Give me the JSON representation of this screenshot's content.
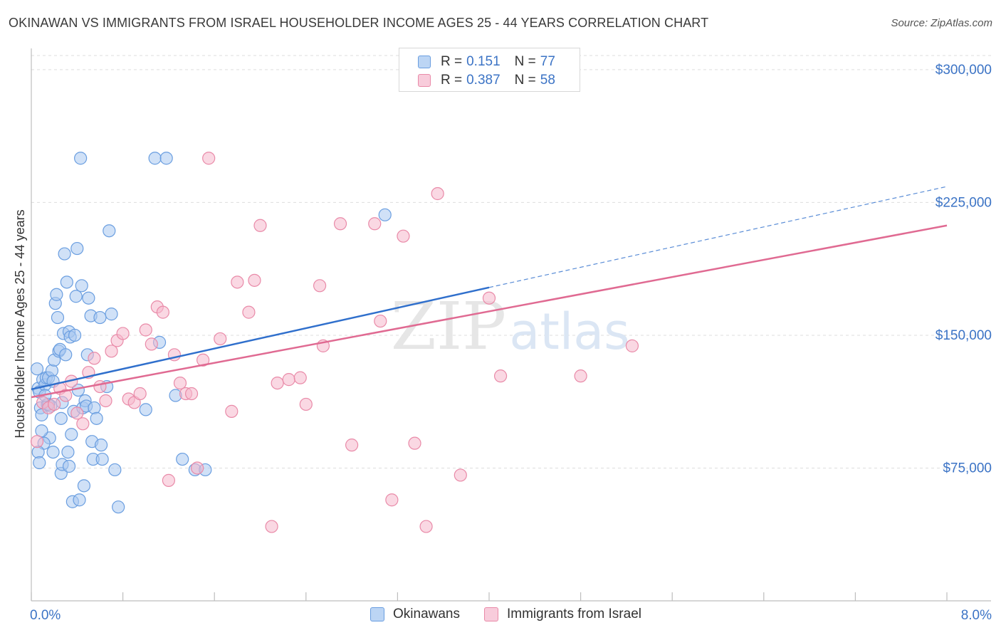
{
  "header": {
    "title": "OKINAWAN VS IMMIGRANTS FROM ISRAEL HOUSEHOLDER INCOME AGES 25 - 44 YEARS CORRELATION CHART",
    "source": "Source: ZipAtlas.com"
  },
  "watermark": {
    "zip": "ZIP",
    "atlas": "atlas"
  },
  "legend": {
    "rows": [
      {
        "r_label": "R =",
        "r_value": "0.151",
        "n_label": "N =",
        "n_value": "77"
      },
      {
        "r_label": "R =",
        "r_value": "0.387",
        "n_label": "N =",
        "n_value": "58"
      }
    ]
  },
  "bottom_legend": {
    "series1": "Okinawans",
    "series2": "Immigrants from Israel"
  },
  "colors": {
    "series1_fill": "#a9c8f0",
    "series1_stroke": "#6a9ee0",
    "series1_line": "#2f6fcc",
    "series2_fill": "#f5b8cc",
    "series2_stroke": "#e98aa8",
    "series2_line": "#e06a92",
    "axis_label": "#3b73c5",
    "grid": "#dddddd"
  },
  "chart_data": {
    "type": "scatter",
    "title": "OKINAWAN VS IMMIGRANTS FROM ISRAEL HOUSEHOLDER INCOME AGES 25 - 44 YEARS CORRELATION CHART",
    "ylabel": "Householder Income Ages 25 - 44 years",
    "xlabel": "",
    "x_ticks": [
      "0.0%",
      "8.0%"
    ],
    "y_ticks": [
      "$75,000",
      "$150,000",
      "$225,000",
      "$300,000"
    ],
    "y_tick_values": [
      75000,
      150000,
      225000,
      300000
    ],
    "xlim": [
      0,
      8.0
    ],
    "ylim": [
      0,
      308000
    ],
    "grid": true,
    "series": [
      {
        "name": "Okinawans",
        "r": 0.151,
        "n": 77,
        "trend": {
          "x0": 0.0,
          "y0": 119500,
          "x1": 4.0,
          "y1": 177000,
          "x_end_dashed": 8.0,
          "y_end_dashed": 234000
        },
        "points": [
          [
            0.05,
            131000
          ],
          [
            0.06,
            120000
          ],
          [
            0.07,
            118000
          ],
          [
            0.08,
            109000
          ],
          [
            0.1,
            125000
          ],
          [
            0.12,
            122000
          ],
          [
            0.13,
            126000
          ],
          [
            0.14,
            111000
          ],
          [
            0.15,
            126000
          ],
          [
            0.17,
            110000
          ],
          [
            0.18,
            130000
          ],
          [
            0.19,
            124000
          ],
          [
            0.2,
            136000
          ],
          [
            0.21,
            168000
          ],
          [
            0.22,
            173000
          ],
          [
            0.23,
            160000
          ],
          [
            0.24,
            141000
          ],
          [
            0.25,
            142000
          ],
          [
            0.26,
            103000
          ],
          [
            0.27,
            112000
          ],
          [
            0.28,
            151000
          ],
          [
            0.29,
            196000
          ],
          [
            0.3,
            139000
          ],
          [
            0.31,
            180000
          ],
          [
            0.32,
            84000
          ],
          [
            0.33,
            152000
          ],
          [
            0.34,
            149000
          ],
          [
            0.35,
            94000
          ],
          [
            0.36,
            56000
          ],
          [
            0.37,
            107000
          ],
          [
            0.38,
            150000
          ],
          [
            0.39,
            172000
          ],
          [
            0.4,
            199000
          ],
          [
            0.41,
            119000
          ],
          [
            0.42,
            57000
          ],
          [
            0.43,
            250000
          ],
          [
            0.44,
            178000
          ],
          [
            0.45,
            109000
          ],
          [
            0.46,
            65000
          ],
          [
            0.47,
            113000
          ],
          [
            0.48,
            110000
          ],
          [
            0.49,
            139000
          ],
          [
            0.5,
            171000
          ],
          [
            0.52,
            161000
          ],
          [
            0.53,
            90000
          ],
          [
            0.54,
            80000
          ],
          [
            0.55,
            109000
          ],
          [
            0.57,
            103000
          ],
          [
            0.6,
            160000
          ],
          [
            0.61,
            88000
          ],
          [
            0.62,
            80000
          ],
          [
            0.66,
            121000
          ],
          [
            0.68,
            209000
          ],
          [
            0.7,
            162000
          ],
          [
            0.73,
            74000
          ],
          [
            0.76,
            53000
          ],
          [
            1.0,
            108000
          ],
          [
            1.08,
            250000
          ],
          [
            1.12,
            146000
          ],
          [
            1.18,
            250000
          ],
          [
            1.26,
            116000
          ],
          [
            1.32,
            80000
          ],
          [
            1.43,
            74000
          ],
          [
            1.52,
            74000
          ],
          [
            3.09,
            218000
          ],
          [
            0.09,
            105000
          ],
          [
            0.16,
            92000
          ],
          [
            0.26,
            72000
          ],
          [
            0.11,
            89000
          ],
          [
            0.19,
            84000
          ],
          [
            0.27,
            77000
          ],
          [
            0.33,
            76000
          ],
          [
            0.06,
            84000
          ],
          [
            0.09,
            96000
          ],
          [
            0.07,
            78000
          ],
          [
            0.15,
            111000
          ],
          [
            0.12,
            116000
          ]
        ]
      },
      {
        "name": "Immigrants from Israel",
        "r": 0.387,
        "n": 58,
        "trend": {
          "x0": 0.0,
          "y0": 115000,
          "x1": 8.0,
          "y1": 212000
        },
        "points": [
          [
            0.05,
            90000
          ],
          [
            0.1,
            112000
          ],
          [
            0.15,
            109000
          ],
          [
            0.2,
            111000
          ],
          [
            0.25,
            120000
          ],
          [
            0.3,
            116000
          ],
          [
            0.35,
            124000
          ],
          [
            0.4,
            106000
          ],
          [
            0.45,
            100000
          ],
          [
            0.5,
            129000
          ],
          [
            0.55,
            137000
          ],
          [
            0.6,
            121000
          ],
          [
            0.65,
            113000
          ],
          [
            0.7,
            141000
          ],
          [
            0.75,
            147000
          ],
          [
            0.8,
            151000
          ],
          [
            0.85,
            114000
          ],
          [
            0.9,
            112000
          ],
          [
            0.95,
            117000
          ],
          [
            1.0,
            153000
          ],
          [
            1.05,
            145000
          ],
          [
            1.1,
            166000
          ],
          [
            1.15,
            163000
          ],
          [
            1.2,
            68000
          ],
          [
            1.25,
            139000
          ],
          [
            1.3,
            123000
          ],
          [
            1.35,
            117000
          ],
          [
            1.4,
            117000
          ],
          [
            1.45,
            75000
          ],
          [
            1.5,
            136000
          ],
          [
            1.55,
            250000
          ],
          [
            1.65,
            148000
          ],
          [
            1.75,
            107000
          ],
          [
            1.8,
            180000
          ],
          [
            1.9,
            163000
          ],
          [
            1.95,
            181000
          ],
          [
            2.0,
            212000
          ],
          [
            2.1,
            42000
          ],
          [
            2.15,
            123000
          ],
          [
            2.25,
            125000
          ],
          [
            2.35,
            126000
          ],
          [
            2.4,
            111000
          ],
          [
            2.52,
            178000
          ],
          [
            2.55,
            144000
          ],
          [
            2.7,
            213000
          ],
          [
            2.8,
            88000
          ],
          [
            3.0,
            213000
          ],
          [
            3.05,
            158000
          ],
          [
            3.15,
            57000
          ],
          [
            3.25,
            206000
          ],
          [
            3.35,
            89000
          ],
          [
            3.45,
            42000
          ],
          [
            3.55,
            230000
          ],
          [
            3.75,
            71000
          ],
          [
            4.0,
            171000
          ],
          [
            4.1,
            127000
          ],
          [
            4.8,
            127000
          ],
          [
            5.25,
            144000
          ]
        ]
      }
    ]
  }
}
